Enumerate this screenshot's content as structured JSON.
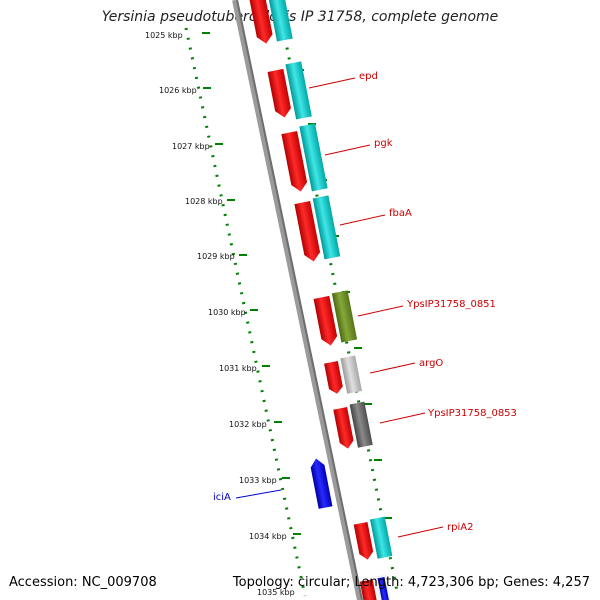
{
  "title": "Yersinia pseudotuberculosis IP 31758, complete genome",
  "footer": {
    "accession": "Accession: NC_009708",
    "summary": "Topology: circular; Length: 4,723,306 bp; Genes: 4,257"
  },
  "colors": {
    "backbone": "#8c8c8c",
    "ticks": "#008000",
    "forward_gene": "#ff0000",
    "reverse_gene": "#0000ff",
    "label_red": "#cc0000",
    "label_blue": "#0000cc",
    "cds_cyan": "#00cccc",
    "cds_olive": "#6b8e23",
    "cds_lightgray": "#c8c8c8",
    "cds_darkgray": "#666666"
  },
  "kbp_labels": [
    "1025 kbp",
    "1026 kbp",
    "1027 kbp",
    "1028 kbp",
    "1029 kbp",
    "1030 kbp",
    "1031 kbp",
    "1032 kbp",
    "1033 kbp",
    "1034 kbp",
    "1035 kbp"
  ],
  "gene_labels": [
    {
      "name": "epd",
      "color": "red"
    },
    {
      "name": "pgk",
      "color": "red"
    },
    {
      "name": "fbaA",
      "color": "red"
    },
    {
      "name": "YpsIP31758_0851",
      "color": "red"
    },
    {
      "name": "argO",
      "color": "red"
    },
    {
      "name": "YpsIP31758_0853",
      "color": "red"
    },
    {
      "name": "iciA",
      "color": "blue"
    },
    {
      "name": "rpiA2",
      "color": "red"
    }
  ]
}
